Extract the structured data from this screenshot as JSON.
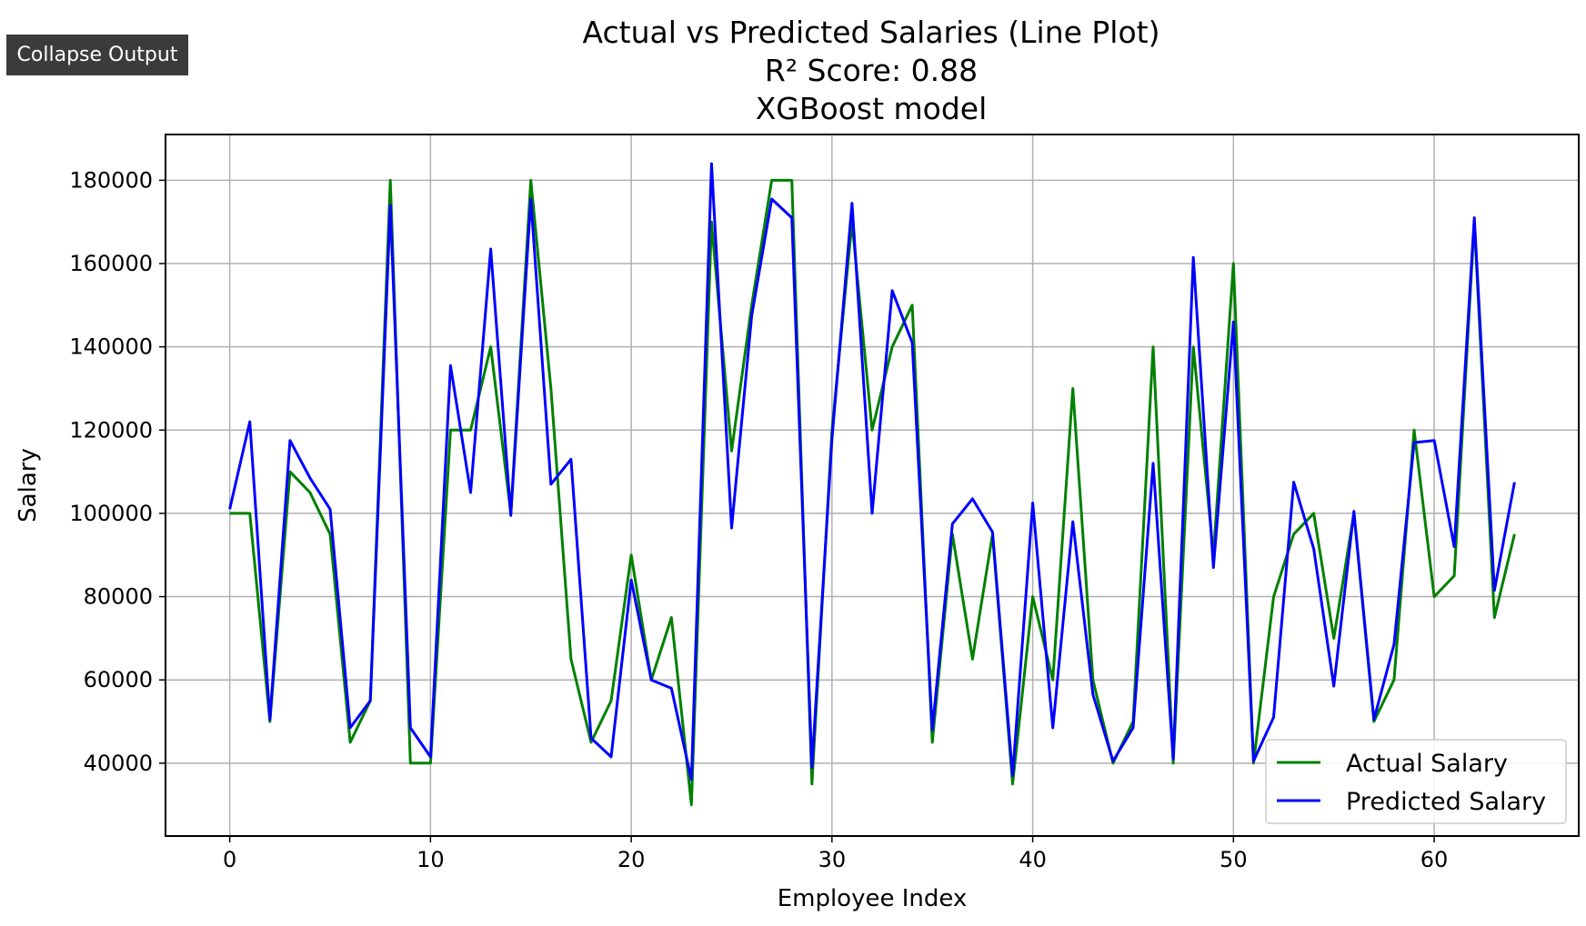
{
  "toolbar": {
    "collapse_label": "Collapse Output"
  },
  "chart_data": {
    "type": "line",
    "title_lines": [
      "Actual vs Predicted Salaries (Line Plot)",
      "R² Score: 0.88",
      "XGBoost model"
    ],
    "xlabel": "Employee Index",
    "ylabel": "Salary",
    "xlim": [
      -3.2,
      67.2
    ],
    "ylim": [
      22500,
      191000
    ],
    "xticks": [
      0,
      10,
      20,
      30,
      40,
      50,
      60
    ],
    "yticks": [
      40000,
      60000,
      80000,
      100000,
      120000,
      140000,
      160000,
      180000
    ],
    "grid": true,
    "legend_position": "lower-right",
    "series": [
      {
        "name": "Actual Salary",
        "color": "#008000",
        "values": [
          100000,
          100000,
          50000,
          110000,
          105000,
          95000,
          45000,
          55000,
          180000,
          40000,
          40000,
          120000,
          120000,
          140000,
          100000,
          180000,
          130000,
          65000,
          45000,
          55000,
          90000,
          60000,
          75000,
          30000,
          170000,
          115000,
          150000,
          180000,
          180000,
          35000,
          120000,
          170000,
          120000,
          140000,
          150000,
          45000,
          95000,
          65000,
          95000,
          35000,
          80000,
          60000,
          130000,
          60000,
          40000,
          50000,
          140000,
          40000,
          140000,
          90000,
          160000,
          40000,
          80000,
          95000,
          100000,
          70000,
          100000,
          50000,
          60000,
          120000,
          80000,
          85000,
          170000,
          75000,
          95000
        ]
      },
      {
        "name": "Predicted Salary",
        "color": "#0000ff",
        "values": [
          101000,
          122000,
          50500,
          117500,
          108500,
          101000,
          48500,
          55000,
          174000,
          48500,
          41500,
          135500,
          105000,
          163500,
          99500,
          175500,
          107000,
          113000,
          46000,
          41500,
          84000,
          60000,
          58000,
          36000,
          184000,
          96500,
          147500,
          175500,
          171000,
          39000,
          118000,
          174500,
          100000,
          153500,
          141000,
          48000,
          97500,
          103500,
          95500,
          37000,
          102500,
          48500,
          98000,
          56500,
          40500,
          48500,
          112000,
          41000,
          161500,
          87000,
          146000,
          40500,
          51000,
          107500,
          91500,
          58500,
          100500,
          50500,
          68500,
          117000,
          117500,
          92000,
          171000,
          81500,
          107500
        ]
      }
    ]
  }
}
